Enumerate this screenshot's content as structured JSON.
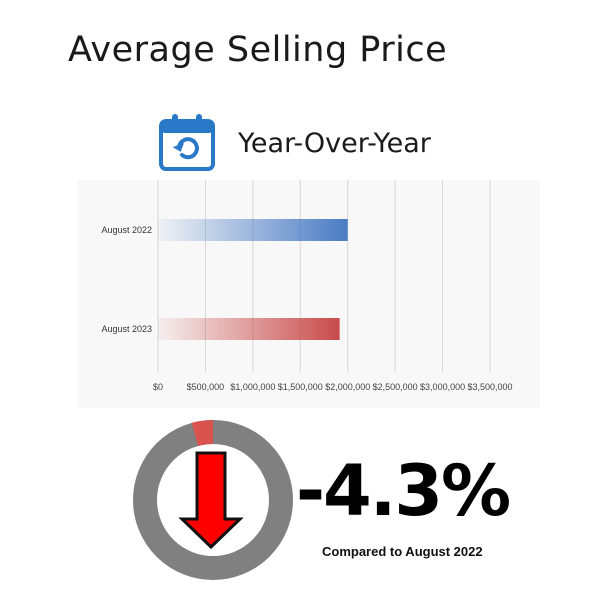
{
  "header": {
    "title": "Average Selling Price",
    "subtitle": "Year-Over-Year",
    "icon": "calendar-refresh-icon",
    "icon_color": "#2a78c8"
  },
  "chart_data": {
    "type": "bar",
    "orientation": "horizontal",
    "title": "",
    "xlabel": "",
    "ylabel": "",
    "categories": [
      "August 2022",
      "August 2023"
    ],
    "values": [
      2000000,
      1915000
    ],
    "colors": [
      "#4a7bc4",
      "#c94a4a"
    ],
    "xlim": [
      0,
      3500000
    ],
    "x_ticks": [
      0,
      500000,
      1000000,
      1500000,
      2000000,
      2500000,
      3000000,
      3500000
    ],
    "x_tick_labels": [
      "$0",
      "$500,000",
      "$1,000,000",
      "$1,500,000",
      "$2,000,000",
      "$2,500,000",
      "$3,000,000",
      "$3,500,000"
    ],
    "grid": true
  },
  "change": {
    "value": "-4.3%",
    "caption": "Compared to August 2022",
    "fraction": 0.043,
    "icon": "down-arrow-icon",
    "ring_color": "#808080",
    "segment_color": "#d9534f",
    "arrow_color": "#ff0000"
  }
}
